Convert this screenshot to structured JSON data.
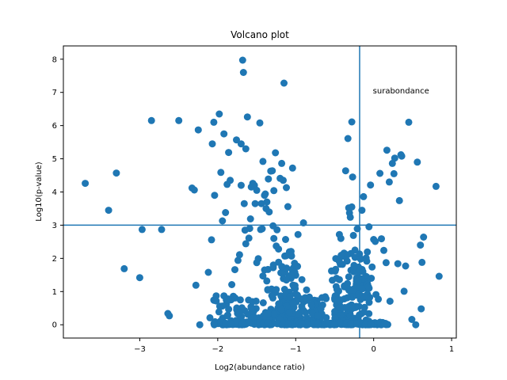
{
  "colors": {
    "marker": "#1f77b4",
    "line": "#1f77b4",
    "axes": "#000000",
    "background": "#ffffff"
  },
  "chart_data": {
    "type": "scatter",
    "title": "Volcano plot",
    "xlabel": "Log2(abundance ratio)",
    "ylabel": "Log10(p-value)",
    "xlim": [
      -3.98,
      1.06
    ],
    "ylim": [
      -0.4,
      8.4
    ],
    "xticks": [
      -3,
      -2,
      -1,
      0,
      1
    ],
    "yticks": [
      0,
      1,
      2,
      3,
      4,
      5,
      6,
      7,
      8
    ],
    "grid": false,
    "threshold_lines": {
      "vertical_x": -0.18,
      "horizontal_y": 3.0
    },
    "annotation": {
      "text": "surabondance",
      "x": 0.0,
      "y": 7.05
    },
    "series": [
      {
        "points": [
          [
            -3.7,
            4.26
          ],
          [
            -3.4,
            3.45
          ],
          [
            -3.3,
            4.57
          ],
          [
            -3.2,
            1.69
          ],
          [
            -3.0,
            1.42
          ],
          [
            -2.97,
            2.87
          ],
          [
            -2.85,
            6.15
          ],
          [
            -2.72,
            2.87
          ],
          [
            -2.64,
            0.34
          ],
          [
            -2.62,
            0.27
          ],
          [
            -2.5,
            6.15
          ],
          [
            -2.33,
            4.12
          ],
          [
            -2.3,
            4.06
          ],
          [
            -2.28,
            1.19
          ],
          [
            -2.25,
            5.87
          ],
          [
            -2.23,
            0.0
          ],
          [
            -2.12,
            1.58
          ],
          [
            -2.1,
            0.21
          ],
          [
            -2.08,
            2.56
          ],
          [
            -2.07,
            5.45
          ],
          [
            -2.05,
            6.1
          ],
          [
            -2.04,
            3.9
          ],
          [
            -2.02,
            0.87
          ],
          [
            -1.98,
            6.35
          ],
          [
            -1.96,
            4.59
          ],
          [
            -1.94,
            3.13
          ],
          [
            -1.92,
            0.87
          ],
          [
            -1.92,
            5.75
          ],
          [
            -1.9,
            3.38
          ],
          [
            -1.88,
            4.23
          ],
          [
            -1.86,
            5.19
          ],
          [
            -1.84,
            4.35
          ],
          [
            -1.82,
            1.21
          ],
          [
            -1.8,
            0.86
          ],
          [
            -1.78,
            1.66
          ],
          [
            -1.76,
            5.57
          ],
          [
            -1.74,
            1.94
          ],
          [
            -1.72,
            2.11
          ],
          [
            -1.7,
            5.45
          ],
          [
            -1.7,
            4.2
          ],
          [
            -1.68,
            7.97
          ],
          [
            -1.67,
            7.6
          ],
          [
            -1.66,
            3.65
          ],
          [
            -1.65,
            2.85
          ],
          [
            -1.64,
            2.44
          ],
          [
            -1.64,
            5.3
          ],
          [
            -1.62,
            6.26
          ],
          [
            -1.6,
            2.61
          ],
          [
            -1.59,
            2.9
          ],
          [
            -1.58,
            3.19
          ],
          [
            -1.57,
            4.15
          ],
          [
            -1.55,
            4.26
          ],
          [
            -1.53,
            4.2
          ],
          [
            -1.52,
            3.65
          ],
          [
            -1.5,
            1.87
          ],
          [
            -1.5,
            4.05
          ],
          [
            -1.48,
            1.99
          ],
          [
            -1.46,
            6.08
          ],
          [
            -1.45,
            2.87
          ],
          [
            -1.44,
            3.65
          ],
          [
            -1.43,
            2.89
          ],
          [
            -1.42,
            4.92
          ],
          [
            -1.42,
            1.47
          ],
          [
            -1.4,
            3.9
          ],
          [
            -1.39,
            3.94
          ],
          [
            -1.38,
            3.5
          ],
          [
            -1.37,
            3.7
          ],
          [
            -1.35,
            4.39
          ],
          [
            -1.34,
            3.4
          ],
          [
            -1.32,
            4.63
          ],
          [
            -1.3,
            4.64
          ],
          [
            -1.29,
            2.98
          ],
          [
            -1.28,
            2.6
          ],
          [
            -1.28,
            4.04
          ],
          [
            -1.26,
            5.18
          ],
          [
            -1.25,
            2.37
          ],
          [
            -1.24,
            2.86
          ],
          [
            -1.22,
            2.28
          ],
          [
            -1.2,
            4.41
          ],
          [
            -1.18,
            4.86
          ],
          [
            -1.16,
            4.35
          ],
          [
            -1.15,
            7.28
          ],
          [
            -1.14,
            2.07
          ],
          [
            -1.13,
            2.57
          ],
          [
            -1.12,
            4.13
          ],
          [
            -1.1,
            3.56
          ],
          [
            -1.08,
            2.2
          ],
          [
            -1.06,
            2.21
          ],
          [
            -1.04,
            4.72
          ],
          [
            -1.03,
            1.71
          ],
          [
            -1.0,
            1.49
          ],
          [
            -0.97,
            2.72
          ],
          [
            -0.92,
            1.36
          ],
          [
            -0.9,
            3.07
          ],
          [
            -0.86,
            1.05
          ],
          [
            -0.84,
            0.79
          ],
          [
            -0.8,
            0.6
          ],
          [
            -0.76,
            0.74
          ],
          [
            -0.54,
            1.62
          ],
          [
            -0.53,
            1.34
          ],
          [
            -0.5,
            0.8
          ],
          [
            -0.48,
            1.15
          ],
          [
            -0.44,
            1.36
          ],
          [
            -0.44,
            2.72
          ],
          [
            -0.42,
            2.6
          ],
          [
            -0.4,
            1.82
          ],
          [
            -0.38,
            2.16
          ],
          [
            -0.36,
            4.64
          ],
          [
            -0.34,
            1.92
          ],
          [
            -0.33,
            5.61
          ],
          [
            -0.32,
            3.52
          ],
          [
            -0.31,
            3.37
          ],
          [
            -0.3,
            3.24
          ],
          [
            -0.29,
            1.0
          ],
          [
            -0.28,
            6.11
          ],
          [
            -0.28,
            3.55
          ],
          [
            -0.27,
            4.45
          ],
          [
            -0.26,
            2.69
          ],
          [
            -0.24,
            2.25
          ],
          [
            -0.22,
            1.38
          ],
          [
            -0.21,
            2.89
          ],
          [
            -0.18,
            1.6
          ],
          [
            -0.15,
            3.45
          ],
          [
            -0.13,
            3.86
          ],
          [
            -0.12,
            1.28
          ],
          [
            -0.1,
            1.46
          ],
          [
            -0.08,
            0.92
          ],
          [
            -0.06,
            2.95
          ],
          [
            -0.04,
            4.21
          ],
          [
            -0.03,
            1.4
          ],
          [
            -0.02,
            1.74
          ],
          [
            0.0,
            2.57
          ],
          [
            0.02,
            2.51
          ],
          [
            0.03,
            0.91
          ],
          [
            0.06,
            0.77
          ],
          [
            0.08,
            4.56
          ],
          [
            0.1,
            2.59
          ],
          [
            0.13,
            2.24
          ],
          [
            0.16,
            1.87
          ],
          [
            0.17,
            5.26
          ],
          [
            0.2,
            4.3
          ],
          [
            0.21,
            0.71
          ],
          [
            0.24,
            4.86
          ],
          [
            0.26,
            4.55
          ],
          [
            0.27,
            5.02
          ],
          [
            0.31,
            1.84
          ],
          [
            0.33,
            3.74
          ],
          [
            0.35,
            5.12
          ],
          [
            0.36,
            5.08
          ],
          [
            0.39,
            1.01
          ],
          [
            0.41,
            1.77
          ],
          [
            0.45,
            6.1
          ],
          [
            0.49,
            0.16
          ],
          [
            0.54,
            0.0
          ],
          [
            0.56,
            4.9
          ],
          [
            0.6,
            2.4
          ],
          [
            0.61,
            0.48
          ],
          [
            0.62,
            1.88
          ],
          [
            0.64,
            2.64
          ],
          [
            0.8,
            4.17
          ],
          [
            0.84,
            1.46
          ]
        ],
        "dense_bands": [
          {
            "x_min": -2.05,
            "x_max": -0.6,
            "y_max": 0.85,
            "points": 190
          },
          {
            "x_min": -1.4,
            "x_max": -0.95,
            "y_max": 2.2,
            "points": 90
          },
          {
            "x_min": -0.5,
            "x_max": -0.05,
            "y_max": 2.2,
            "points": 150
          },
          {
            "x_min": -1.9,
            "x_max": 0.2,
            "y_max": 0.08,
            "points": 160
          }
        ]
      }
    ]
  }
}
